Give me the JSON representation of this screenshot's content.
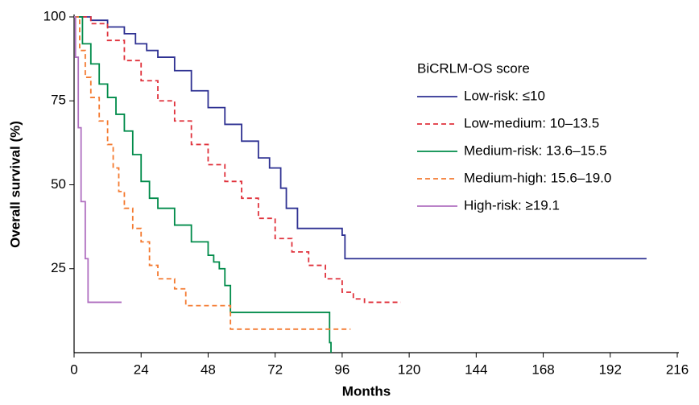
{
  "chart_data": {
    "type": "line",
    "step": true,
    "x_label": "Months",
    "y_label": "Overall survival (%)",
    "legend_title": "BiCRLM-OS score",
    "legend": "upper right",
    "xlim": [
      0,
      216
    ],
    "xticks": [
      0,
      24,
      48,
      72,
      96,
      120,
      144,
      168,
      192,
      216
    ],
    "ylim": [
      0,
      100
    ],
    "yticks": [
      25,
      50,
      75,
      100
    ],
    "series": [
      {
        "name": "Low-risk: ≤10",
        "color": "#2e3192",
        "dashed": false,
        "x": [
          0,
          6,
          12,
          18,
          22,
          26,
          30,
          36,
          42,
          48,
          54,
          60,
          66,
          70,
          74,
          76,
          80,
          96,
          97,
          205
        ],
        "values": [
          100,
          99,
          97,
          95,
          92,
          90,
          88,
          84,
          78,
          73,
          68,
          63,
          58,
          55,
          49,
          43,
          37,
          35,
          28,
          28
        ]
      },
      {
        "name": "Low-medium: 10–13.5",
        "color": "#e0323c",
        "dashed": true,
        "x": [
          0,
          6,
          12,
          18,
          24,
          30,
          36,
          42,
          48,
          54,
          60,
          66,
          72,
          78,
          84,
          90,
          96,
          100,
          104,
          117
        ],
        "values": [
          100,
          98,
          93,
          87,
          81,
          75,
          69,
          62,
          56,
          51,
          46,
          40,
          34,
          30,
          26,
          22,
          18,
          16,
          15,
          15
        ]
      },
      {
        "name": "Medium-risk: 13.6–15.5",
        "color": "#008b4a",
        "dashed": false,
        "x": [
          0,
          3,
          6,
          9,
          12,
          15,
          18,
          21,
          24,
          27,
          30,
          36,
          42,
          48,
          50,
          52,
          54,
          56,
          91,
          91.5,
          92
        ],
        "values": [
          100,
          92,
          86,
          80,
          76,
          71,
          66,
          59,
          51,
          46,
          43,
          38,
          33,
          29,
          27,
          25,
          20,
          12,
          12,
          3,
          0
        ]
      },
      {
        "name": "Medium-high: 15.6–19.0",
        "color": "#f47a30",
        "dashed": true,
        "x": [
          0,
          2,
          4,
          6,
          9,
          12,
          14,
          16,
          18,
          21,
          24,
          27,
          30,
          36,
          40,
          52,
          56,
          99
        ],
        "values": [
          100,
          90,
          82,
          76,
          69,
          62,
          55,
          48,
          43,
          37,
          33,
          26,
          22,
          19,
          14,
          14,
          7,
          7
        ]
      },
      {
        "name": "High-risk: ≥19.1",
        "color": "#b070c0",
        "dashed": false,
        "x": [
          0,
          0.5,
          1.5,
          2.5,
          4,
          5,
          17
        ],
        "values": [
          100,
          88,
          67,
          45,
          28,
          15,
          15
        ]
      }
    ]
  }
}
